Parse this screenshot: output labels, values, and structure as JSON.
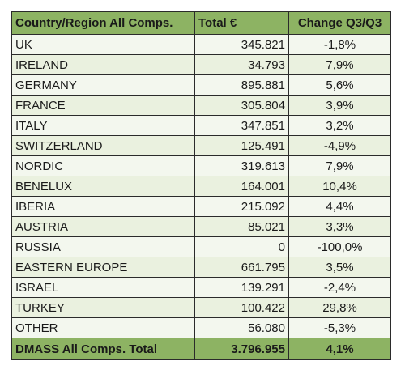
{
  "table": {
    "headers": {
      "country": "Country/Region All Comps.",
      "total": "Total €",
      "change": "Change Q3/Q3"
    },
    "rows": [
      {
        "country": "UK",
        "total": "345.821",
        "change": "-1,8%"
      },
      {
        "country": "IRELAND",
        "total": "34.793",
        "change": "7,9%"
      },
      {
        "country": "GERMANY",
        "total": "895.881",
        "change": "5,6%"
      },
      {
        "country": "FRANCE",
        "total": "305.804",
        "change": "3,9%"
      },
      {
        "country": "ITALY",
        "total": "347.851",
        "change": "3,2%"
      },
      {
        "country": "SWITZERLAND",
        "total": "125.491",
        "change": "-4,9%"
      },
      {
        "country": "NORDIC",
        "total": "319.613",
        "change": "7,9%"
      },
      {
        "country": "BENELUX",
        "total": "164.001",
        "change": "10,4%"
      },
      {
        "country": "IBERIA",
        "total": "215.092",
        "change": "4,4%"
      },
      {
        "country": "AUSTRIA",
        "total": "85.021",
        "change": "3,3%"
      },
      {
        "country": "RUSSIA",
        "total": "0",
        "change": "-100,0%"
      },
      {
        "country": "EASTERN EUROPE",
        "total": "661.795",
        "change": "3,5%"
      },
      {
        "country": "ISRAEL",
        "total": "139.291",
        "change": "-2,4%"
      },
      {
        "country": "TURKEY",
        "total": "100.422",
        "change": "29,8%"
      },
      {
        "country": "OTHER",
        "total": "56.080",
        "change": "-5,3%"
      }
    ],
    "footer": {
      "country": "DMASS All Comps. Total",
      "total": "3.796.955",
      "change": "4,1%"
    }
  },
  "colors": {
    "header_bg": "#8db363",
    "row_bg": "#eaf1df",
    "row_alt_bg": "#f3f7ee",
    "border": "#2b2b2b"
  }
}
